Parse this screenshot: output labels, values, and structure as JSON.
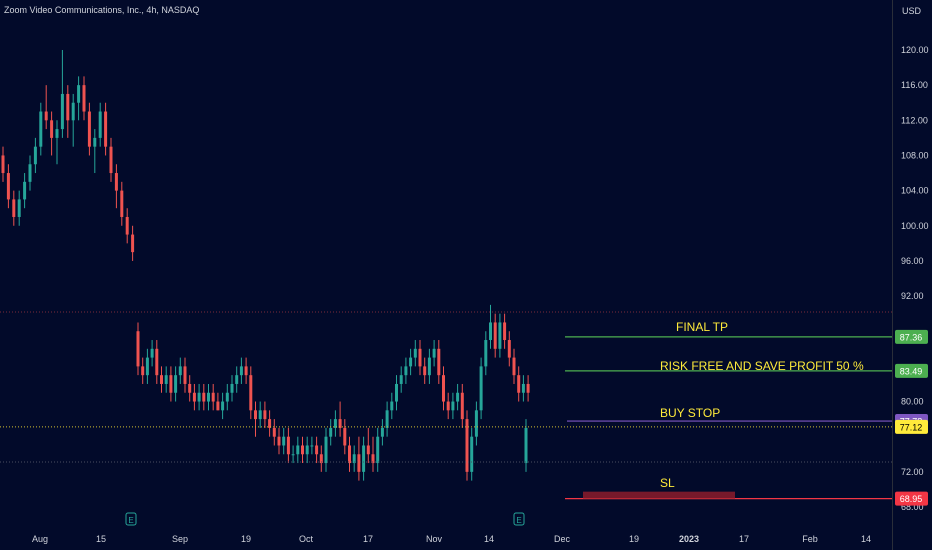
{
  "header": {
    "title": "Zoom Video Communications, Inc., 4h, NASDAQ",
    "currency": "USD"
  },
  "chart_data": {
    "type": "candlestick",
    "ylim": [
      66,
      124
    ],
    "y_ticks": [
      68,
      72,
      76,
      80,
      84,
      88,
      92,
      96,
      100,
      104,
      108,
      112,
      116,
      120
    ],
    "x_ticks": [
      "Aug",
      "15",
      "Sep",
      "19",
      "Oct",
      "17",
      "Nov",
      "14",
      "Dec",
      "19",
      "2023",
      "17",
      "Feb",
      "14"
    ],
    "colors": {
      "up": "#26a69a",
      "down": "#ef5350"
    },
    "series": [
      {
        "segment": "Aug",
        "ohlc": [
          [
            108,
            109,
            105,
            106
          ],
          [
            106,
            107,
            102,
            103
          ],
          [
            103,
            104,
            100,
            101
          ],
          [
            101,
            104,
            100,
            103
          ],
          [
            103,
            106,
            102,
            105
          ],
          [
            105,
            108,
            104,
            107
          ],
          [
            107,
            110,
            106,
            109
          ],
          [
            109,
            114,
            108,
            113
          ],
          [
            113,
            116,
            111,
            112
          ],
          [
            112,
            113,
            108,
            110
          ],
          [
            110,
            112,
            107,
            111
          ],
          [
            111,
            120,
            110,
            115
          ],
          [
            115,
            116,
            110,
            112
          ],
          [
            112,
            115,
            109,
            114
          ],
          [
            114,
            117,
            112,
            116
          ],
          [
            116,
            117,
            112,
            113
          ],
          [
            113,
            114,
            108,
            109
          ],
          [
            109,
            111,
            106,
            110
          ],
          [
            110,
            114,
            109,
            113
          ],
          [
            113,
            114,
            108,
            109
          ],
          [
            109,
            110,
            105,
            106
          ],
          [
            106,
            107,
            102,
            104
          ],
          [
            104,
            105,
            100,
            101
          ],
          [
            101,
            102,
            98,
            99
          ],
          [
            99,
            100,
            96,
            97
          ]
        ]
      },
      {
        "segment": "Sep-Nov",
        "ohlc": [
          [
            88,
            89,
            83,
            84
          ],
          [
            84,
            85,
            82,
            83
          ],
          [
            83,
            86,
            82,
            85
          ],
          [
            85,
            87,
            84,
            86
          ],
          [
            86,
            87,
            82,
            83
          ],
          [
            83,
            84,
            81,
            82
          ],
          [
            82,
            84,
            81,
            83
          ],
          [
            83,
            84,
            80,
            81
          ],
          [
            81,
            84,
            80,
            83
          ],
          [
            83,
            85,
            82,
            84
          ],
          [
            84,
            85,
            81,
            82
          ],
          [
            82,
            83,
            80,
            81
          ],
          [
            81,
            82,
            79,
            80
          ],
          [
            80,
            82,
            79,
            81
          ],
          [
            81,
            82,
            79,
            80
          ],
          [
            80,
            82,
            79,
            81
          ],
          [
            81,
            82,
            79,
            80
          ],
          [
            80,
            81,
            79,
            79
          ],
          [
            79,
            81,
            78,
            80
          ],
          [
            80,
            82,
            79,
            81
          ],
          [
            81,
            83,
            80,
            82
          ],
          [
            82,
            84,
            81,
            83
          ],
          [
            83,
            85,
            82,
            84
          ],
          [
            84,
            85,
            82,
            83
          ],
          [
            83,
            84,
            78,
            79
          ],
          [
            79,
            80,
            76,
            78
          ],
          [
            78,
            80,
            77,
            79
          ],
          [
            79,
            80,
            77,
            78
          ],
          [
            78,
            79,
            76,
            77
          ],
          [
            77,
            78,
            75,
            76
          ],
          [
            76,
            77,
            74,
            75
          ],
          [
            75,
            77,
            74,
            76
          ],
          [
            76,
            77,
            73,
            74
          ],
          [
            74,
            75,
            73,
            74
          ],
          [
            74,
            76,
            73,
            75
          ],
          [
            75,
            76,
            73,
            74
          ],
          [
            74,
            76,
            73,
            75
          ],
          [
            75,
            76,
            74,
            75
          ],
          [
            75,
            76,
            73,
            74
          ],
          [
            74,
            75,
            72,
            73
          ],
          [
            73,
            77,
            72,
            76
          ],
          [
            76,
            78,
            75,
            77
          ],
          [
            77,
            79,
            76,
            78
          ],
          [
            78,
            80,
            76,
            77
          ],
          [
            77,
            78,
            74,
            75
          ],
          [
            75,
            76,
            72,
            73
          ],
          [
            73,
            75,
            72,
            74
          ],
          [
            74,
            76,
            71,
            72
          ],
          [
            72,
            76,
            71,
            75
          ],
          [
            75,
            77,
            73,
            74
          ],
          [
            74,
            76,
            72,
            73
          ],
          [
            73,
            77,
            72,
            76
          ],
          [
            76,
            78,
            75,
            77
          ],
          [
            77,
            80,
            76,
            79
          ],
          [
            79,
            81,
            78,
            80
          ],
          [
            80,
            83,
            79,
            82
          ],
          [
            82,
            84,
            81,
            83
          ],
          [
            83,
            85,
            82,
            84
          ],
          [
            84,
            86,
            83,
            85
          ],
          [
            85,
            87,
            84,
            86
          ],
          [
            86,
            87,
            83,
            84
          ],
          [
            84,
            85,
            82,
            83
          ],
          [
            83,
            86,
            82,
            85
          ],
          [
            85,
            87,
            84,
            86
          ],
          [
            86,
            87,
            82,
            83
          ],
          [
            83,
            84,
            79,
            80
          ],
          [
            80,
            81,
            78,
            79
          ],
          [
            79,
            81,
            78,
            80
          ],
          [
            80,
            82,
            79,
            81
          ],
          [
            81,
            82,
            77,
            78
          ],
          [
            78,
            79,
            71,
            72
          ],
          [
            72,
            77,
            71,
            76
          ],
          [
            76,
            80,
            75,
            79
          ],
          [
            79,
            85,
            78,
            84
          ],
          [
            84,
            88,
            83,
            87
          ],
          [
            87,
            91,
            86,
            89
          ],
          [
            89,
            90,
            85,
            86
          ],
          [
            86,
            90,
            85,
            89
          ],
          [
            89,
            90,
            86,
            87
          ],
          [
            87,
            88,
            84,
            85
          ],
          [
            85,
            86,
            82,
            83
          ],
          [
            83,
            84,
            80,
            81
          ],
          [
            81,
            83,
            80,
            82
          ],
          [
            82,
            83,
            80,
            81
          ]
        ]
      },
      {
        "segment": "last",
        "ohlc": [
          [
            73,
            78,
            72,
            77
          ]
        ]
      }
    ],
    "horizontal_levels": [
      {
        "label": "FINAL TP",
        "value": 87.36,
        "color": "#4caf50"
      },
      {
        "label": "RISK FREE AND SAVE PROFIT 50 %",
        "value": 83.49,
        "color": "#4caf50"
      },
      {
        "label": "BUY STOP",
        "value": 77.78,
        "color": "#7e57c2"
      },
      {
        "label": "SL",
        "value": 68.95,
        "color": "#f23645"
      }
    ],
    "price_labels": [
      {
        "value": 87.36,
        "text": "87.36",
        "color": "#4caf50"
      },
      {
        "value": 83.49,
        "text": "83.49",
        "color": "#4caf50"
      },
      {
        "value": 77.78,
        "text": "77.78",
        "color": "#7e57c2"
      },
      {
        "value": 77.12,
        "text": "77.12",
        "color": "#ffeb3b"
      },
      {
        "value": 68.95,
        "text": "68.95",
        "color": "#f23645"
      }
    ],
    "current_price": 77.12
  }
}
